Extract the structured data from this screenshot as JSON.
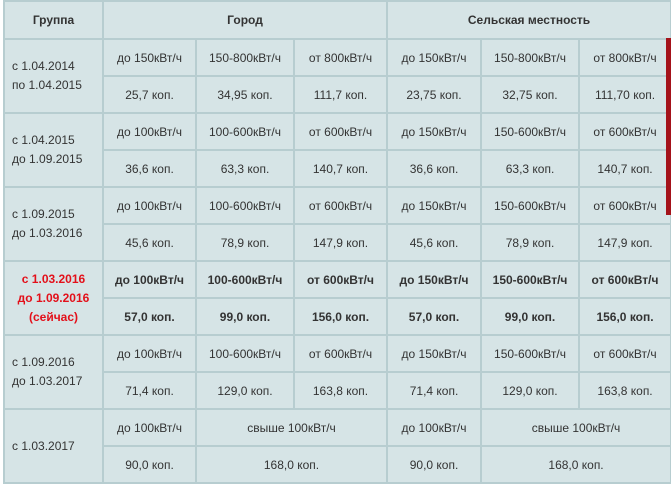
{
  "header": {
    "group": "Группа",
    "city": "Город",
    "rural": "Сельская местность"
  },
  "groups": [
    {
      "period": [
        "с 1.04.2014",
        "по 1.04.2015"
      ],
      "current": false,
      "city_tiers": [
        "до 150кВт/ч",
        "150-800кВт/ч",
        "от 800кВт/ч"
      ],
      "city_prices": [
        "25,7 коп.",
        "34,95 коп.",
        "111,7 коп."
      ],
      "rural_tiers": [
        "до 150кВт/ч",
        "150-800кВт/ч",
        "от 800кВт/ч"
      ],
      "rural_prices": [
        "23,75 коп.",
        "32,75 коп.",
        "111,70 коп."
      ]
    },
    {
      "period": [
        "с 1.04.2015",
        "до 1.09.2015"
      ],
      "current": false,
      "city_tiers": [
        "до 100кВт/ч",
        "100-600кВт/ч",
        "от 600кВт/ч"
      ],
      "city_prices": [
        "36,6 коп.",
        "63,3 коп.",
        "140,7 коп."
      ],
      "rural_tiers": [
        "до 150кВт/ч",
        "150-600кВт/ч",
        "от 600кВт/ч"
      ],
      "rural_prices": [
        "36,6 коп.",
        "63,3 коп.",
        "140,7 коп."
      ]
    },
    {
      "period": [
        "с 1.09.2015",
        "до 1.03.2016"
      ],
      "current": false,
      "city_tiers": [
        "до 100кВт/ч",
        "100-600кВт/ч",
        "от 600кВт/ч"
      ],
      "city_prices": [
        "45,6 коп.",
        "78,9 коп.",
        "147,9 коп."
      ],
      "rural_tiers": [
        "до 150кВт/ч",
        "150-600кВт/ч",
        "от 600кВт/ч"
      ],
      "rural_prices": [
        "45,6 коп.",
        "78,9 коп.",
        "147,9 коп."
      ]
    },
    {
      "period": [
        "с 1.03.2016",
        "до 1.09.2016",
        "(сейчас)"
      ],
      "current": true,
      "city_tiers": [
        "до 100кВт/ч",
        "100-600кВт/ч",
        "от 600кВт/ч"
      ],
      "city_prices": [
        "57,0 коп.",
        "99,0 коп.",
        "156,0 коп."
      ],
      "rural_tiers": [
        "до 150кВт/ч",
        "150-600кВт/ч",
        "от 600кВт/ч"
      ],
      "rural_prices": [
        "57,0 коп.",
        "99,0 коп.",
        "156,0 коп."
      ]
    },
    {
      "period": [
        "с 1.09.2016",
        "до 1.03.2017"
      ],
      "current": false,
      "city_tiers": [
        "до 100кВт/ч",
        "100-600кВт/ч",
        "от 600кВт/ч"
      ],
      "city_prices": [
        "71,4 коп.",
        "129,0 коп.",
        "163,8 коп."
      ],
      "rural_tiers": [
        "до 150кВт/ч",
        "150-600кВт/ч",
        "от 600кВт/ч"
      ],
      "rural_prices": [
        "71,4 коп.",
        "129,0 коп.",
        "163,8 коп."
      ]
    },
    {
      "period": [
        "с 1.03.2017"
      ],
      "current": false,
      "city_tiers": [
        "до 100кВт/ч",
        "свыше 100кВт/ч"
      ],
      "city_prices": [
        "90,0 коп.",
        "168,0 коп."
      ],
      "rural_tiers": [
        "до 100кВт/ч",
        "свыше 100кВт/ч"
      ],
      "rural_prices": [
        "90,0 коп.",
        "168,0 коп."
      ]
    }
  ],
  "colors": {
    "background": "#d6e4e6",
    "border": "#b7cdd0",
    "current_highlight": "#e3101a",
    "scrollbar": "#a4121a"
  }
}
